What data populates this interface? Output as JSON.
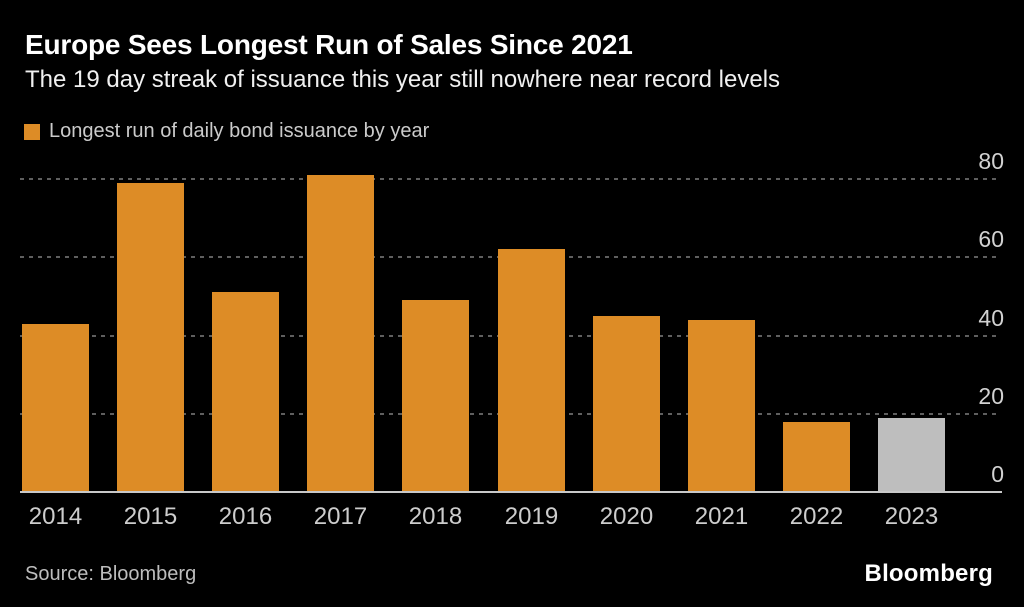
{
  "header": {
    "title": "Europe Sees Longest Run of Sales Since 2021",
    "subtitle": "The 19 day streak of issuance this year still nowhere near record levels"
  },
  "legend": {
    "label": "Longest run of daily bond issuance by year",
    "swatch_color": "#DD8C26"
  },
  "chart_data": {
    "type": "bar",
    "title": "Europe Sees Longest Run of Sales Since 2021",
    "subtitle": "The 19 day streak of issuance this year still nowhere near record levels",
    "categories": [
      "2014",
      "2015",
      "2016",
      "2017",
      "2018",
      "2019",
      "2020",
      "2021",
      "2022",
      "2023"
    ],
    "values": [
      43,
      79,
      51,
      81,
      49,
      62,
      45,
      44,
      18,
      19
    ],
    "series_name": "Longest run of daily bond issuance by year",
    "highlighted_category": "2023",
    "xlabel": "",
    "ylabel": "",
    "ylim": [
      0,
      84
    ],
    "yticks": [
      0,
      20,
      40,
      60,
      80
    ],
    "grid": "horizontal-dashed",
    "legend_position": "top-left",
    "y_axis_side": "right"
  },
  "footer": {
    "source": "Source: Bloomberg",
    "logo": "Bloomberg"
  },
  "colors": {
    "background": "#000000",
    "bar": "#DD8C26",
    "bar_highlight": "#BEBEBE",
    "grid": "#5F5F5F",
    "axis": "#C8C8C8",
    "title": "#FFFFFF",
    "subtitle": "#F0F0F0",
    "tick_label": "#CDCDCD",
    "legend_text": "#CBCBCB",
    "source_text": "#BDBDBD",
    "logo_text": "#FFFFFF"
  }
}
